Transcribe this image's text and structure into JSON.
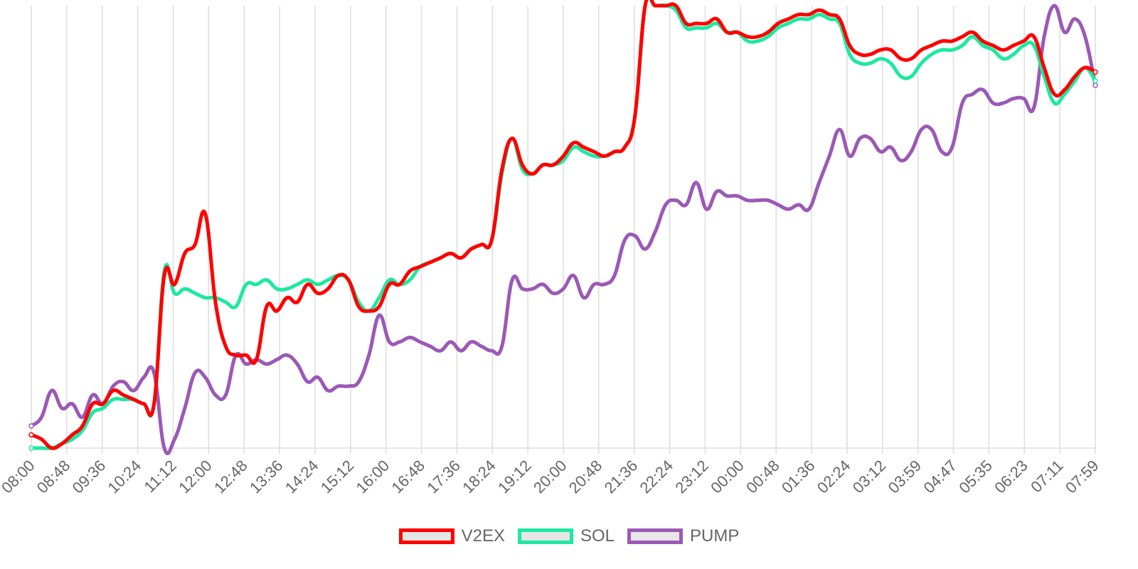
{
  "chart_data": {
    "type": "line",
    "title": "",
    "xlabel": "",
    "ylabel": "",
    "grid": "vertical",
    "legend_position": "bottom",
    "x_tick_labels": [
      "08:00",
      "08:48",
      "09:36",
      "10:24",
      "11:12",
      "12:00",
      "12:48",
      "13:36",
      "14:24",
      "15:12",
      "16:00",
      "16:48",
      "17:36",
      "18:24",
      "19:12",
      "20:00",
      "20:48",
      "21:36",
      "22:24",
      "23:12",
      "00:00",
      "00:48",
      "01:36",
      "02:24",
      "03:12",
      "03:59",
      "04:47",
      "05:35",
      "06:23",
      "07:11",
      "07:59"
    ],
    "ylim": [
      0,
      100
    ],
    "series": [
      {
        "name": "V2EX",
        "color": "#ff0000",
        "values": [
          3,
          2,
          0,
          1,
          3,
          5,
          10,
          10,
          13,
          12,
          11,
          10,
          10,
          39,
          37,
          44,
          46,
          53,
          33,
          23,
          21,
          21,
          20,
          32,
          31,
          34,
          33,
          37,
          35,
          36,
          39,
          38,
          32,
          31,
          32,
          37,
          37,
          40,
          41,
          42,
          43,
          44,
          43,
          45,
          46,
          47,
          63,
          70,
          64,
          62,
          64,
          64,
          66,
          69,
          68,
          67,
          66,
          67,
          68,
          75,
          100,
          100,
          100,
          100,
          96,
          96,
          96,
          97,
          94,
          94,
          93,
          93,
          94,
          96,
          97,
          98,
          98,
          99,
          98,
          97,
          91,
          89,
          89,
          90,
          90,
          88,
          88,
          90,
          91,
          92,
          92,
          93,
          94,
          92,
          91,
          90,
          91,
          92,
          93,
          86,
          80,
          81,
          84,
          86,
          85
        ],
        "x_frac_first": 0.0,
        "x_frac_last": 1.0
      },
      {
        "name": "SOL",
        "color": "#1de9a0",
        "values": [
          0,
          0,
          0,
          1,
          2,
          4,
          8,
          9,
          11,
          11,
          11,
          10,
          10,
          40,
          35,
          36,
          35,
          34,
          34,
          33,
          32,
          37,
          37,
          38,
          36,
          36,
          37,
          38,
          37,
          38,
          39,
          38,
          33,
          31,
          34,
          38,
          37,
          38,
          41,
          42,
          43,
          44,
          43,
          45,
          46,
          47,
          62,
          70,
          63,
          62,
          64,
          64,
          65,
          68,
          67,
          66,
          66,
          67,
          68,
          75,
          100,
          100,
          100,
          99,
          95,
          95,
          95,
          96,
          94,
          94,
          92,
          92,
          93,
          95,
          96,
          97,
          97,
          98,
          97,
          96,
          89,
          87,
          87,
          88,
          87,
          84,
          84,
          87,
          89,
          90,
          90,
          91,
          93,
          91,
          90,
          88,
          89,
          91,
          91,
          84,
          78,
          80,
          83,
          86,
          83
        ]
      },
      {
        "name": "PUMP",
        "color": "#9b59b6",
        "values": [
          5,
          7,
          13,
          9,
          10,
          7,
          12,
          10,
          14,
          15,
          13,
          16,
          17,
          0,
          2,
          9,
          17,
          16,
          12,
          12,
          21,
          19,
          20,
          19,
          20,
          21,
          19,
          15,
          16,
          13,
          14,
          14,
          15,
          21,
          30,
          24,
          24,
          25,
          24,
          23,
          22,
          24,
          22,
          24,
          23,
          22,
          23,
          38,
          36,
          36,
          37,
          35,
          36,
          39,
          34,
          37,
          37,
          39,
          47,
          48,
          45,
          49,
          55,
          56,
          55,
          60,
          54,
          58,
          57,
          57,
          56,
          56,
          56,
          55,
          54,
          55,
          54,
          60,
          66,
          72,
          66,
          70,
          70,
          67,
          68,
          65,
          67,
          72,
          72,
          67,
          68,
          78,
          80,
          81,
          78,
          78,
          79,
          79,
          77,
          93,
          100,
          94,
          97,
          93,
          82
        ]
      }
    ]
  },
  "legend": {
    "items": [
      {
        "label": "V2EX",
        "color": "#ff0000"
      },
      {
        "label": "SOL",
        "color": "#1de9a0"
      },
      {
        "label": "PUMP",
        "color": "#9b59b6"
      }
    ]
  }
}
